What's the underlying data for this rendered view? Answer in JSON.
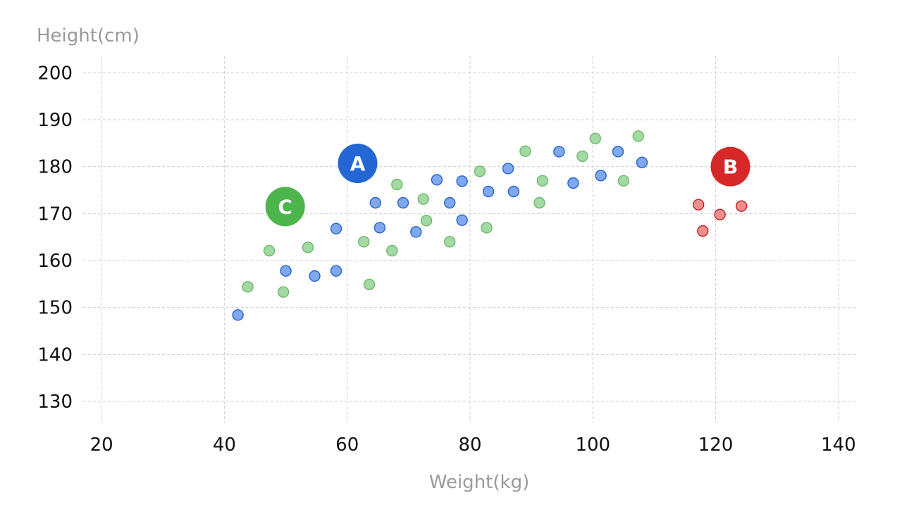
{
  "chart_data": {
    "type": "scatter",
    "title": "",
    "xlabel": "Weight(kg)",
    "ylabel": "Height(cm)",
    "xlim": [
      17,
      143
    ],
    "ylim": [
      125.5,
      203.5
    ],
    "xticks": [
      20,
      40,
      60,
      80,
      100,
      120,
      140
    ],
    "yticks": [
      130,
      140,
      150,
      160,
      170,
      180,
      190,
      200
    ],
    "xtick_labels": [
      "20",
      "40",
      "60",
      "80",
      "100",
      "120",
      "140"
    ],
    "ytick_labels": [
      "130",
      "140",
      "150",
      "160",
      "170",
      "180",
      "190",
      "200"
    ],
    "grid": true,
    "series": [
      {
        "name": "A",
        "color": "#7fa8ee",
        "edge_color": "#2563cc",
        "points": [
          [
            42.2,
            148.4
          ],
          [
            50.0,
            157.8
          ],
          [
            54.7,
            156.7
          ],
          [
            58.2,
            157.8
          ],
          [
            58.2,
            166.8
          ],
          [
            64.6,
            172.3
          ],
          [
            65.3,
            167.0
          ],
          [
            69.1,
            172.3
          ],
          [
            71.2,
            166.1
          ],
          [
            74.6,
            177.2
          ],
          [
            76.7,
            172.3
          ],
          [
            78.7,
            176.9
          ],
          [
            78.7,
            168.6
          ],
          [
            83.0,
            174.7
          ],
          [
            86.2,
            179.6
          ],
          [
            87.1,
            174.7
          ],
          [
            94.5,
            183.2
          ],
          [
            96.8,
            176.5
          ],
          [
            101.3,
            178.1
          ],
          [
            104.1,
            183.2
          ],
          [
            108.0,
            180.9
          ]
        ]
      },
      {
        "name": "B",
        "color": "#ee8f8f",
        "edge_color": "#c42020",
        "points": [
          [
            117.2,
            171.9
          ],
          [
            117.9,
            166.3
          ],
          [
            120.7,
            169.8
          ],
          [
            124.2,
            171.6
          ]
        ]
      },
      {
        "name": "C",
        "color": "#a3d9a3",
        "edge_color": "#6cb86c",
        "points": [
          [
            43.8,
            154.4
          ],
          [
            47.3,
            162.1
          ],
          [
            49.6,
            153.3
          ],
          [
            53.6,
            162.8
          ],
          [
            62.7,
            164.0
          ],
          [
            63.6,
            154.9
          ],
          [
            67.3,
            162.1
          ],
          [
            68.1,
            176.2
          ],
          [
            72.4,
            173.1
          ],
          [
            72.9,
            168.5
          ],
          [
            76.7,
            164.0
          ],
          [
            81.6,
            179.0
          ],
          [
            82.7,
            167.0
          ],
          [
            89.0,
            183.3
          ],
          [
            91.3,
            172.3
          ],
          [
            91.8,
            177.0
          ],
          [
            98.3,
            182.2
          ],
          [
            100.4,
            186.0
          ],
          [
            105.0,
            177.0
          ],
          [
            107.4,
            186.5
          ]
        ]
      }
    ],
    "annotations": [
      {
        "label": "A",
        "x": 61.7,
        "y": 180.7,
        "color": "#2467d4"
      },
      {
        "label": "B",
        "x": 122.4,
        "y": 180.0,
        "color": "#d62828"
      },
      {
        "label": "C",
        "x": 49.9,
        "y": 171.5,
        "color": "#4cb54c"
      }
    ]
  }
}
